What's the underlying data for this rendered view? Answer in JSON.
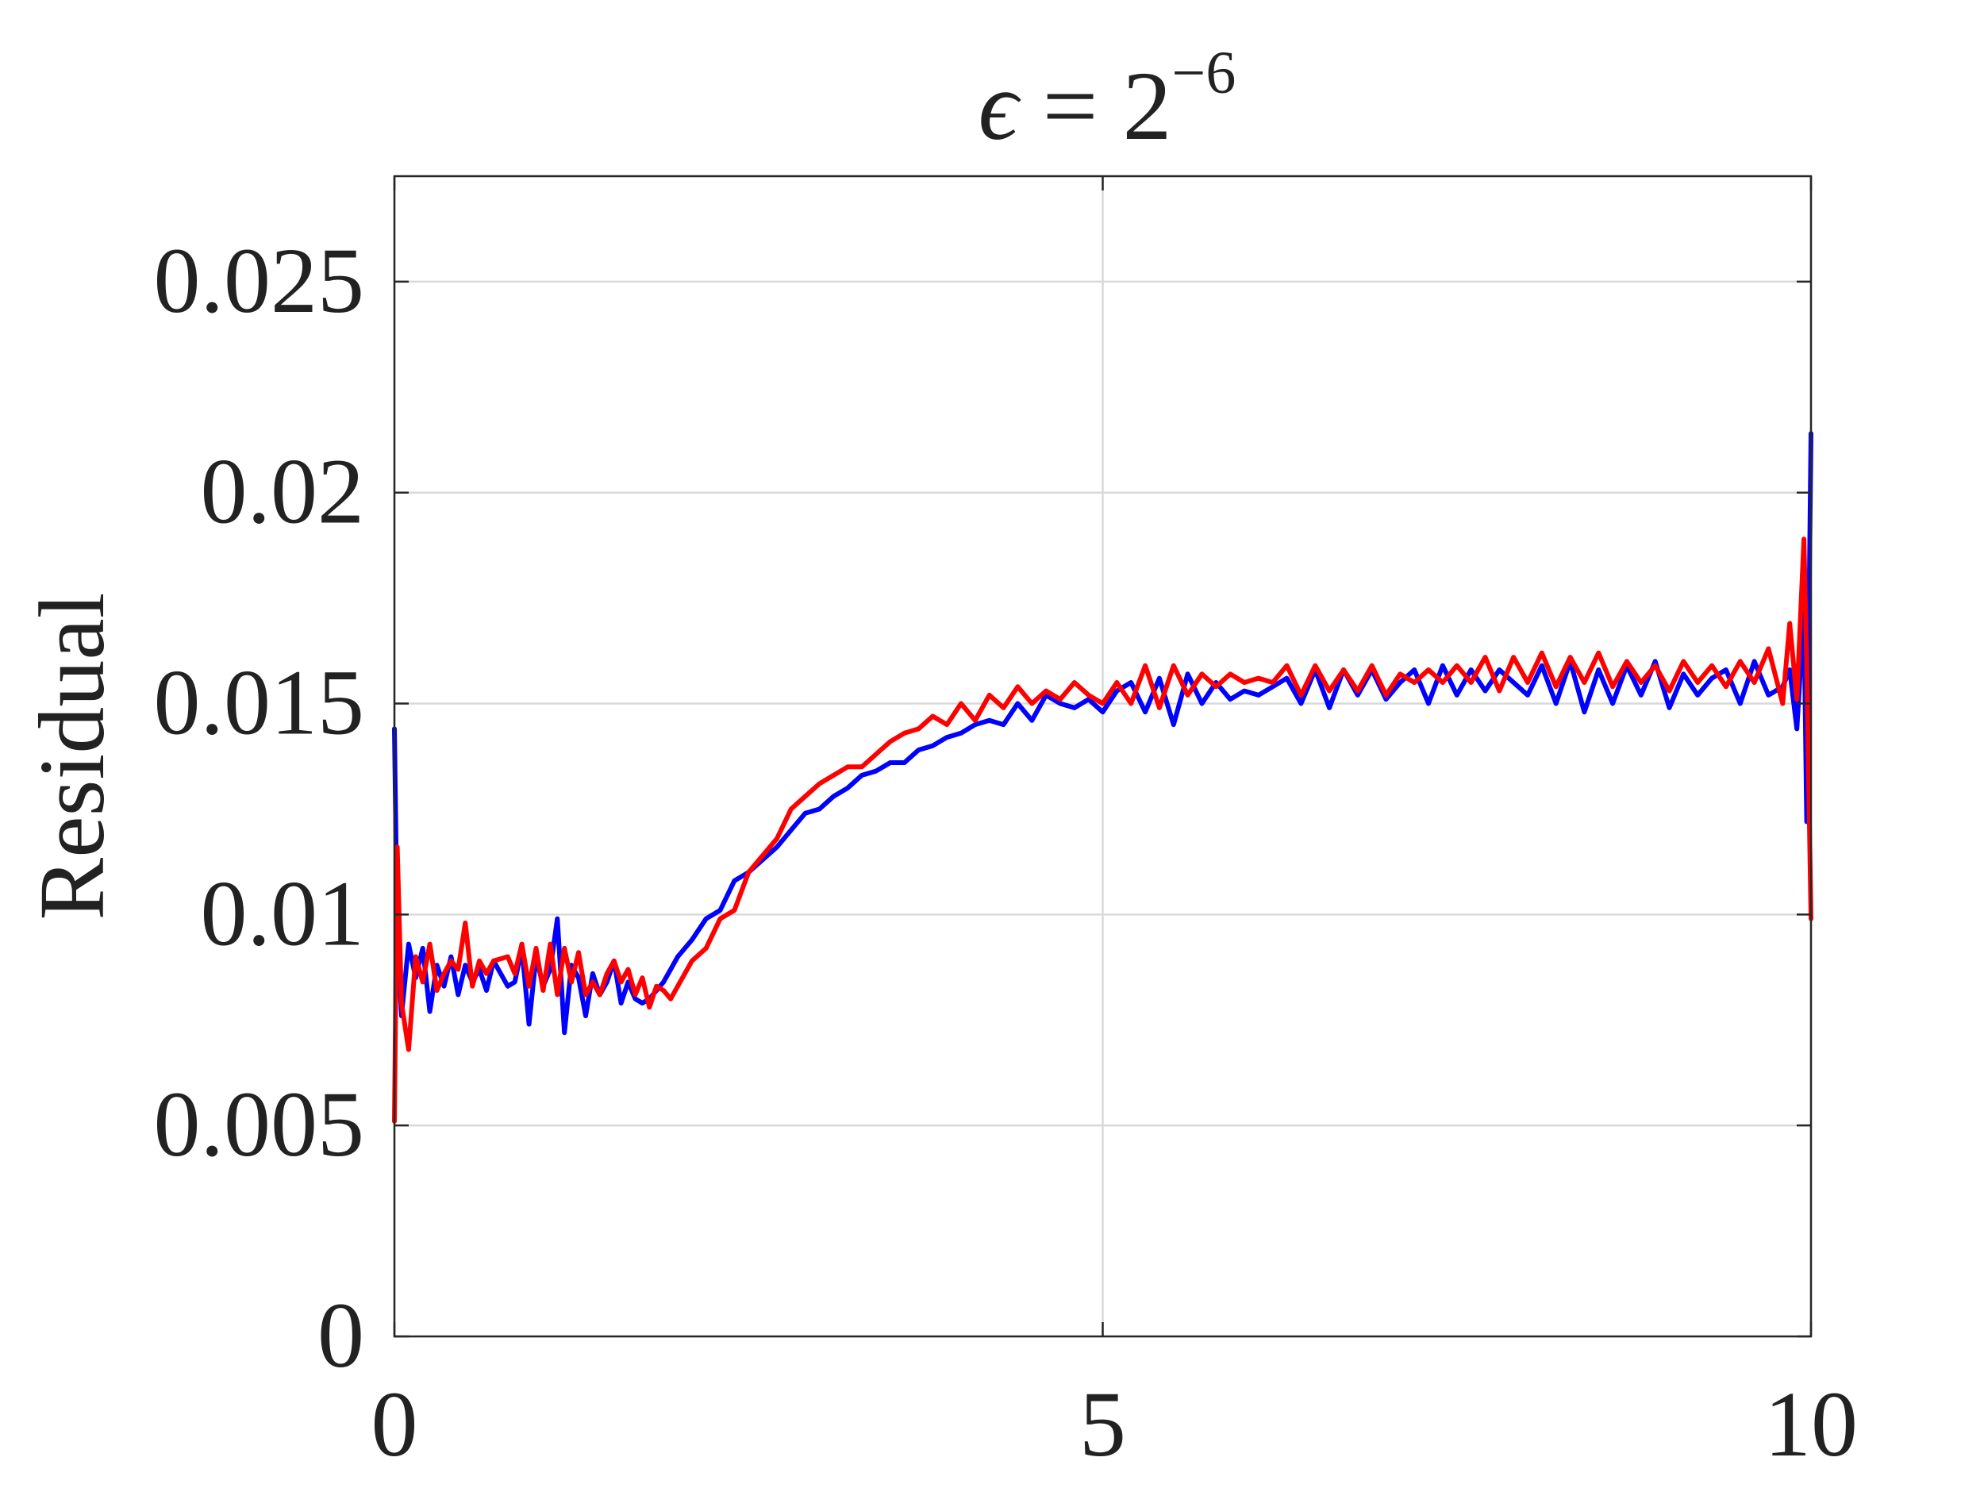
{
  "chart_data": {
    "type": "line",
    "title": {
      "symbol": "ϵ",
      "equals": " = ",
      "base": "2",
      "exponent": "−6"
    },
    "xlabel": "",
    "ylabel": "Residual",
    "xlim": [
      0,
      10
    ],
    "ylim": [
      0,
      0.0275
    ],
    "xticks": [
      0,
      5,
      10
    ],
    "xtick_labels": [
      "0",
      "5",
      "10"
    ],
    "yticks": [
      0,
      0.005,
      0.01,
      0.015,
      0.02,
      0.025
    ],
    "ytick_labels": [
      "0",
      "0.005",
      "0.01",
      "0.015",
      "0.02",
      "0.025"
    ],
    "grid": true,
    "legend": null,
    "series": [
      {
        "color": "#0000ff",
        "x": [
          0,
          0.02,
          0.05,
          0.1,
          0.15,
          0.2,
          0.25,
          0.3,
          0.35,
          0.4,
          0.45,
          0.5,
          0.55,
          0.6,
          0.65,
          0.7,
          0.8,
          0.85,
          0.9,
          0.95,
          1.0,
          1.05,
          1.1,
          1.15,
          1.2,
          1.25,
          1.3,
          1.35,
          1.4,
          1.45,
          1.5,
          1.55,
          1.6,
          1.65,
          1.7,
          1.75,
          1.8,
          1.85,
          1.9,
          1.95,
          2.0,
          2.1,
          2.2,
          2.3,
          2.4,
          2.5,
          2.6,
          2.7,
          2.8,
          2.9,
          3.0,
          3.1,
          3.2,
          3.3,
          3.4,
          3.5,
          3.6,
          3.7,
          3.8,
          3.9,
          4.0,
          4.1,
          4.2,
          4.3,
          4.4,
          4.5,
          4.6,
          4.7,
          4.8,
          4.9,
          5.0,
          5.1,
          5.2,
          5.3,
          5.4,
          5.5,
          5.6,
          5.7,
          5.8,
          5.9,
          6.0,
          6.1,
          6.2,
          6.3,
          6.4,
          6.5,
          6.6,
          6.7,
          6.8,
          6.9,
          7.0,
          7.1,
          7.2,
          7.3,
          7.4,
          7.5,
          7.6,
          7.7,
          7.8,
          7.9,
          8.0,
          8.1,
          8.2,
          8.3,
          8.4,
          8.5,
          8.6,
          8.7,
          8.8,
          8.9,
          9.0,
          9.1,
          9.2,
          9.3,
          9.4,
          9.5,
          9.6,
          9.7,
          9.8,
          9.85,
          9.9,
          9.95,
          9.97,
          10.0
        ],
        "y": [
          0.0144,
          0.0095,
          0.0076,
          0.0093,
          0.0085,
          0.0092,
          0.0077,
          0.0088,
          0.0083,
          0.009,
          0.0081,
          0.0088,
          0.0084,
          0.0087,
          0.0082,
          0.0089,
          0.0083,
          0.0084,
          0.0092,
          0.0074,
          0.009,
          0.0083,
          0.0087,
          0.0099,
          0.0072,
          0.0088,
          0.0085,
          0.0076,
          0.0086,
          0.0081,
          0.0084,
          0.0089,
          0.0079,
          0.0084,
          0.008,
          0.0079,
          0.008,
          0.0082,
          0.0084,
          0.0087,
          0.009,
          0.0094,
          0.0099,
          0.0101,
          0.0108,
          0.011,
          0.0113,
          0.0116,
          0.012,
          0.0124,
          0.0125,
          0.0128,
          0.013,
          0.0133,
          0.0134,
          0.0136,
          0.0136,
          0.0139,
          0.014,
          0.0142,
          0.0143,
          0.0145,
          0.0146,
          0.0145,
          0.015,
          0.0146,
          0.0152,
          0.015,
          0.0149,
          0.0151,
          0.0148,
          0.0153,
          0.0155,
          0.0148,
          0.0156,
          0.0145,
          0.0157,
          0.015,
          0.0155,
          0.0151,
          0.0153,
          0.0152,
          0.0154,
          0.0156,
          0.015,
          0.0158,
          0.0149,
          0.0158,
          0.0152,
          0.0158,
          0.0151,
          0.0155,
          0.0158,
          0.015,
          0.0159,
          0.0152,
          0.0158,
          0.0153,
          0.0158,
          0.0155,
          0.0152,
          0.0159,
          0.015,
          0.016,
          0.0148,
          0.0158,
          0.015,
          0.0159,
          0.0152,
          0.016,
          0.0149,
          0.0157,
          0.0152,
          0.0156,
          0.0158,
          0.015,
          0.016,
          0.0152,
          0.0154,
          0.0158,
          0.0144,
          0.0172,
          0.0122,
          0.0214
        ]
      },
      {
        "color": "#ff0000",
        "x": [
          0,
          0.02,
          0.05,
          0.1,
          0.15,
          0.2,
          0.25,
          0.3,
          0.35,
          0.4,
          0.45,
          0.5,
          0.55,
          0.6,
          0.65,
          0.7,
          0.8,
          0.85,
          0.9,
          0.95,
          1.0,
          1.05,
          1.1,
          1.15,
          1.2,
          1.25,
          1.3,
          1.35,
          1.4,
          1.45,
          1.5,
          1.55,
          1.6,
          1.65,
          1.7,
          1.75,
          1.8,
          1.85,
          1.9,
          1.95,
          2.0,
          2.1,
          2.2,
          2.3,
          2.4,
          2.5,
          2.6,
          2.7,
          2.8,
          2.9,
          3.0,
          3.1,
          3.2,
          3.3,
          3.4,
          3.5,
          3.6,
          3.7,
          3.8,
          3.9,
          4.0,
          4.1,
          4.2,
          4.3,
          4.4,
          4.5,
          4.6,
          4.7,
          4.8,
          4.9,
          5.0,
          5.1,
          5.2,
          5.3,
          5.4,
          5.5,
          5.6,
          5.7,
          5.8,
          5.9,
          6.0,
          6.1,
          6.2,
          6.3,
          6.4,
          6.5,
          6.6,
          6.7,
          6.8,
          6.9,
          7.0,
          7.1,
          7.2,
          7.3,
          7.4,
          7.5,
          7.6,
          7.7,
          7.8,
          7.9,
          8.0,
          8.1,
          8.2,
          8.3,
          8.4,
          8.5,
          8.6,
          8.7,
          8.8,
          8.9,
          9.0,
          9.1,
          9.2,
          9.3,
          9.4,
          9.5,
          9.6,
          9.7,
          9.8,
          9.85,
          9.9,
          9.95,
          9.97,
          10.0
        ],
        "y": [
          0.0051,
          0.0116,
          0.0079,
          0.0068,
          0.009,
          0.0084,
          0.0093,
          0.0082,
          0.0086,
          0.0089,
          0.0087,
          0.0098,
          0.0083,
          0.0089,
          0.0086,
          0.0089,
          0.009,
          0.0086,
          0.0093,
          0.0083,
          0.0092,
          0.0082,
          0.0093,
          0.0081,
          0.0092,
          0.0084,
          0.0091,
          0.0081,
          0.0084,
          0.0081,
          0.0086,
          0.0089,
          0.0084,
          0.0087,
          0.0081,
          0.0085,
          0.0078,
          0.0083,
          0.0082,
          0.008,
          0.0083,
          0.0089,
          0.0092,
          0.0099,
          0.0101,
          0.011,
          0.0114,
          0.0118,
          0.0125,
          0.0128,
          0.0131,
          0.0133,
          0.0135,
          0.0135,
          0.0138,
          0.0141,
          0.0143,
          0.0144,
          0.0147,
          0.0145,
          0.015,
          0.0146,
          0.0152,
          0.0149,
          0.0154,
          0.015,
          0.0153,
          0.0151,
          0.0155,
          0.0152,
          0.015,
          0.0155,
          0.015,
          0.0159,
          0.0149,
          0.0159,
          0.0152,
          0.0157,
          0.0154,
          0.0157,
          0.0155,
          0.0156,
          0.0155,
          0.0159,
          0.0152,
          0.0159,
          0.0153,
          0.0158,
          0.0153,
          0.0159,
          0.0152,
          0.0157,
          0.0155,
          0.0158,
          0.0155,
          0.0159,
          0.0155,
          0.0161,
          0.0153,
          0.0161,
          0.0155,
          0.0162,
          0.0154,
          0.0161,
          0.0155,
          0.0162,
          0.0154,
          0.016,
          0.0155,
          0.0159,
          0.0153,
          0.016,
          0.0155,
          0.0159,
          0.0154,
          0.016,
          0.0155,
          0.0163,
          0.015,
          0.0169,
          0.0151,
          0.0189,
          0.016,
          0.0099
        ]
      }
    ]
  }
}
